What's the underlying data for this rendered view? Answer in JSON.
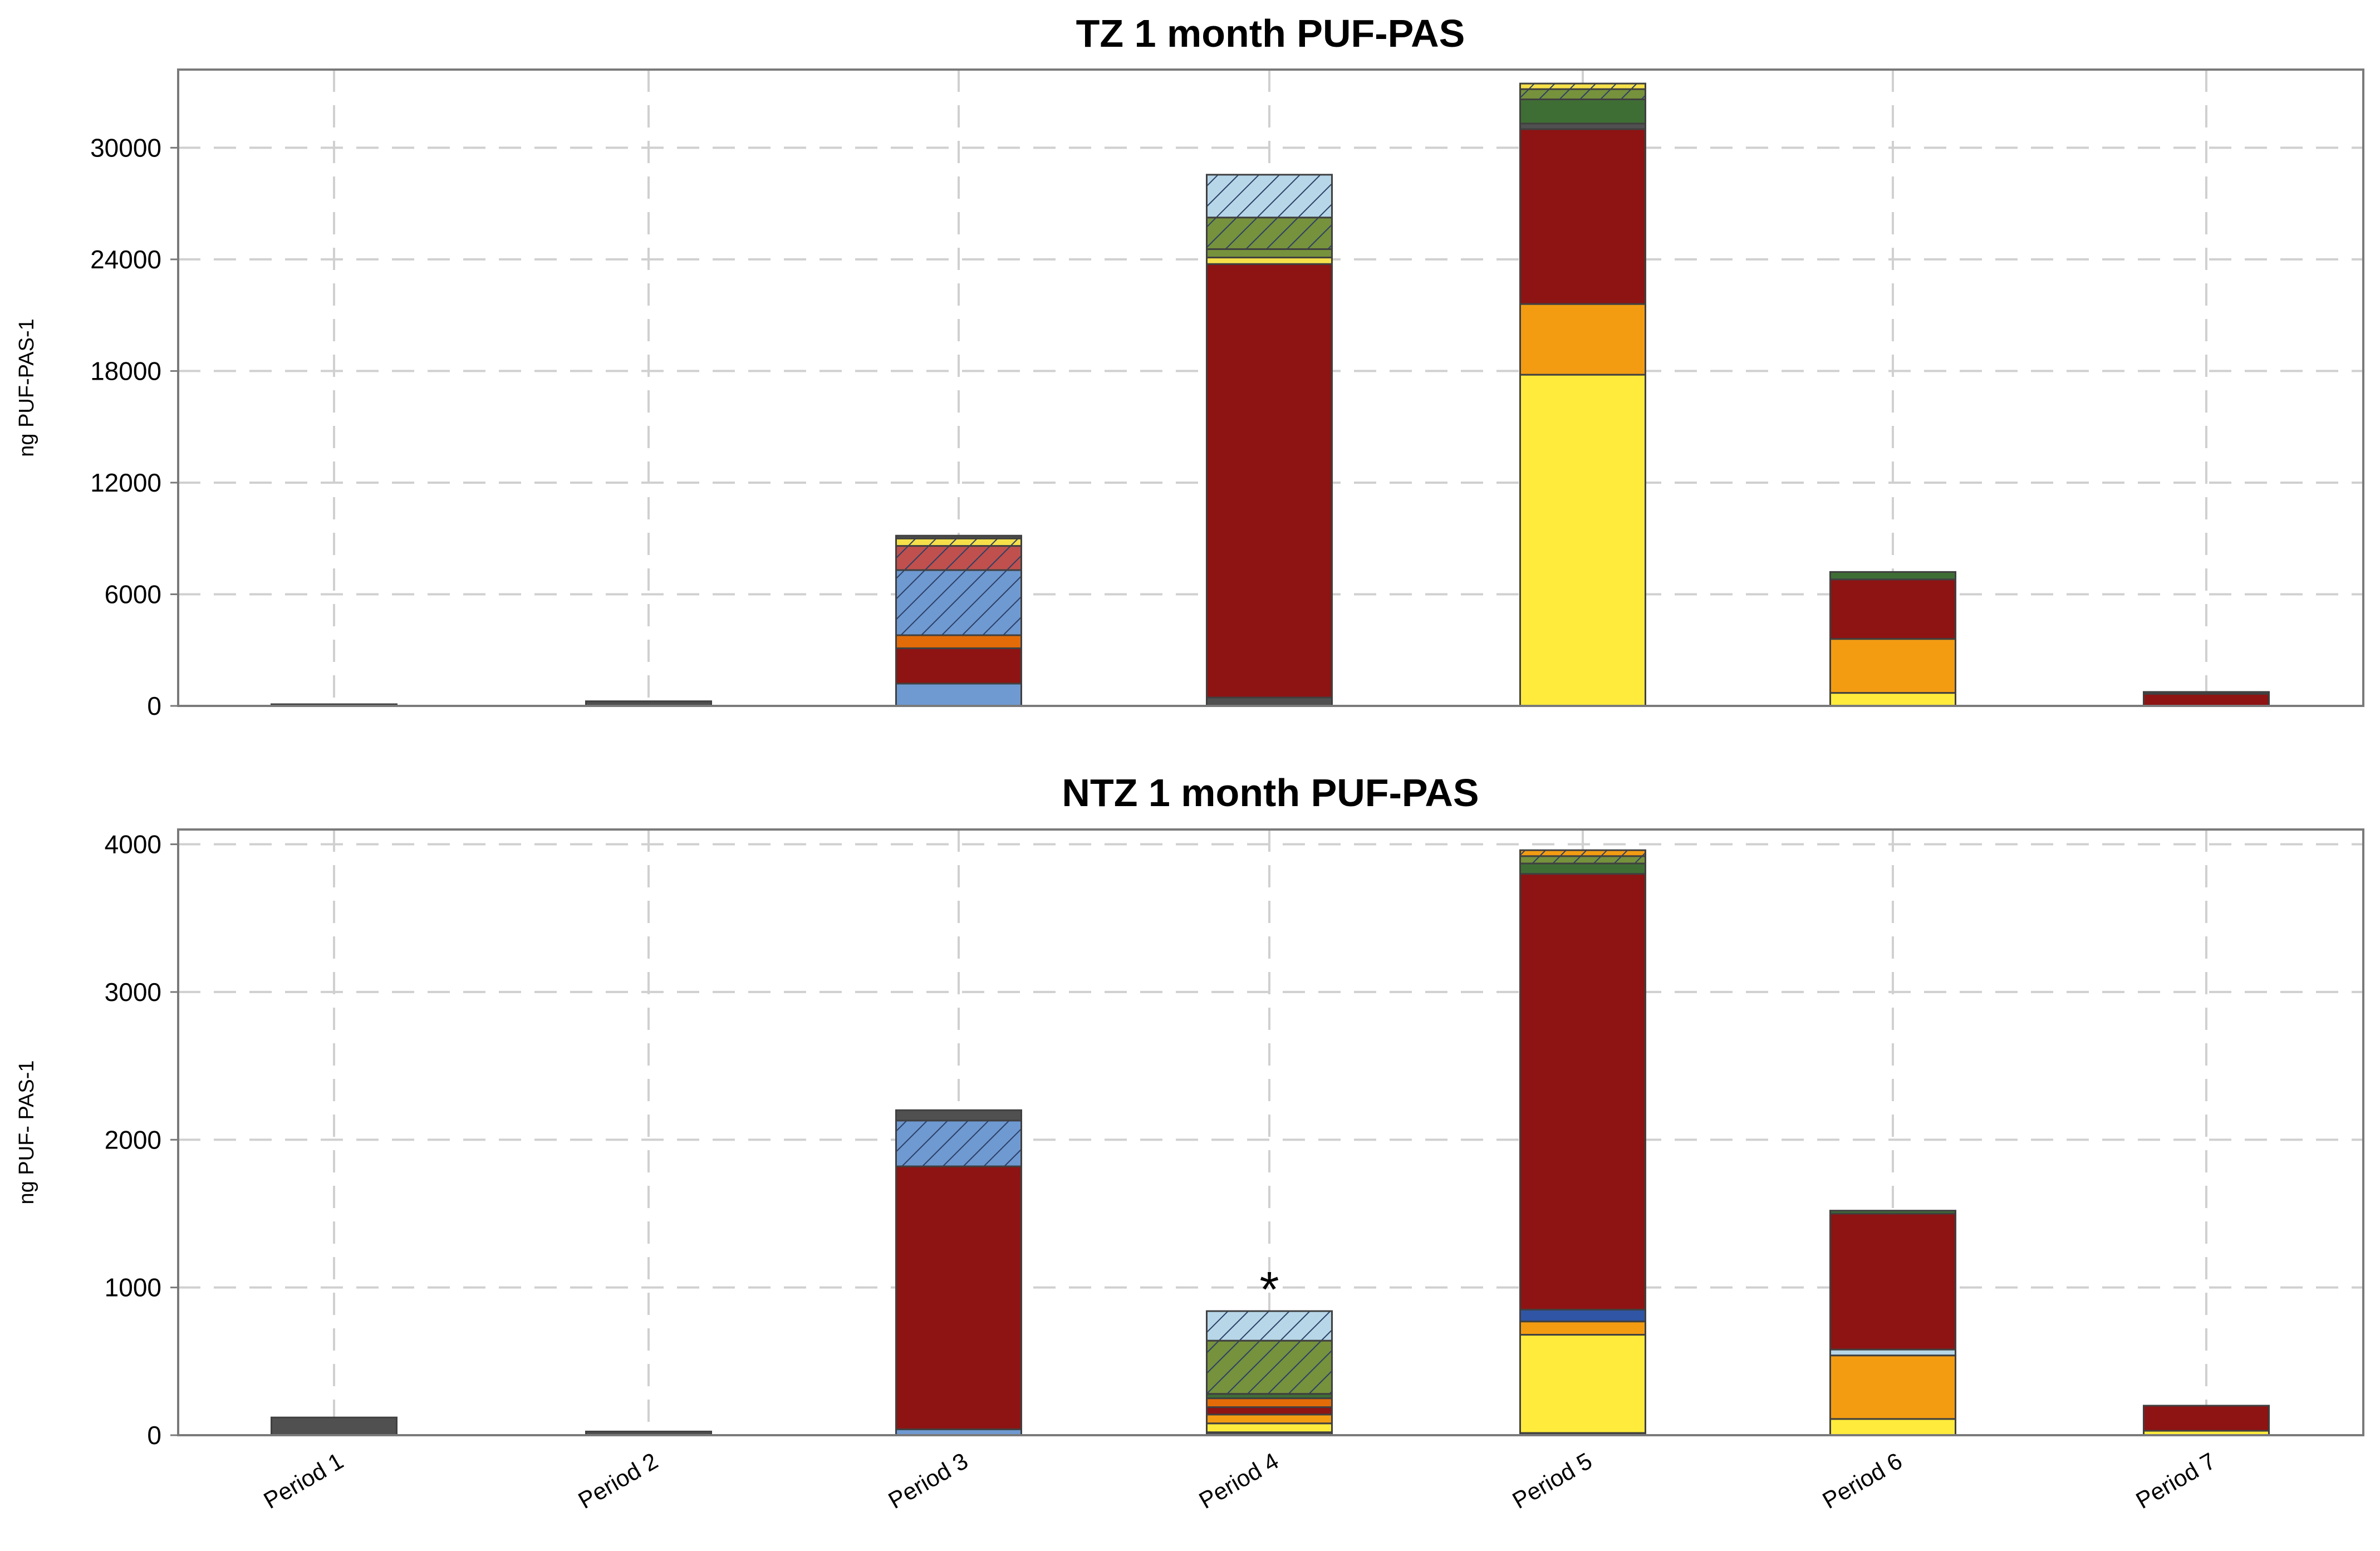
{
  "colors": {
    "frame": "#7a7a7a",
    "grid": "#d0d0d0",
    "baseline": "#909090",
    "bar_edge": "#404040",
    "background": "#ffffff"
  },
  "chart_data": [
    {
      "type": "bar",
      "stacked": true,
      "title": "TZ 1 month PUF-PAS",
      "xlabel": "",
      "ylabel": "ng PUF-PAS-1",
      "ylim": [
        0,
        34200
      ],
      "yticks": [
        0,
        6000,
        12000,
        18000,
        24000,
        30000
      ],
      "grid": true,
      "categories": [
        "Period 1",
        "Period 2",
        "Period 3",
        "Period 4",
        "Period 5",
        "Period 6",
        "Period 7"
      ],
      "show_category_labels": false,
      "stacks": [
        [
          {
            "value": 80,
            "color": "#505050"
          }
        ],
        [
          {
            "value": 250,
            "color": "#505050"
          }
        ],
        [
          {
            "value": 1200,
            "color": "#6f99d1"
          },
          {
            "value": 1900,
            "color": "#8e1313"
          },
          {
            "value": 700,
            "color": "#e36c09"
          },
          {
            "value": 3500,
            "color": "#6f99d1",
            "hatch": true
          },
          {
            "value": 1300,
            "color": "#c0504d",
            "hatch": true
          },
          {
            "value": 400,
            "color": "#f5e04a",
            "hatch": true
          },
          {
            "value": 150,
            "color": "#505050"
          }
        ],
        [
          {
            "value": 450,
            "color": "#505050"
          },
          {
            "value": 23300,
            "color": "#8e1313"
          },
          {
            "value": 350,
            "color": "#f5e04a"
          },
          {
            "value": 450,
            "color": "#76923c"
          },
          {
            "value": 1700,
            "color": "#76923c",
            "hatch": true
          },
          {
            "value": 2300,
            "color": "#b7d7e8",
            "hatch": true
          }
        ],
        [
          {
            "value": 17800,
            "color": "#ffeb3b"
          },
          {
            "value": 3800,
            "color": "#f39c12"
          },
          {
            "value": 9400,
            "color": "#8e1313"
          },
          {
            "value": 300,
            "color": "#505050"
          },
          {
            "value": 1300,
            "color": "#3f6e35"
          },
          {
            "value": 550,
            "color": "#76923c",
            "hatch": true
          },
          {
            "value": 300,
            "color": "#f5e04a",
            "hatch": true
          }
        ],
        [
          {
            "value": 700,
            "color": "#ffeb3b"
          },
          {
            "value": 2900,
            "color": "#f39c12"
          },
          {
            "value": 3200,
            "color": "#8e1313"
          },
          {
            "value": 400,
            "color": "#3f6e35"
          }
        ],
        [
          {
            "value": 650,
            "color": "#8e1313"
          },
          {
            "value": 100,
            "color": "#505050"
          }
        ]
      ],
      "annotations": []
    },
    {
      "type": "bar",
      "stacked": true,
      "title": "NTZ 1 month PUF-PAS",
      "xlabel": "",
      "ylabel": "ng PUF- PAS-1",
      "ylim": [
        0,
        4100
      ],
      "yticks": [
        0,
        1000,
        2000,
        3000,
        4000
      ],
      "grid": true,
      "categories": [
        "Period 1",
        "Period 2",
        "Period 3",
        "Period 4",
        "Period 5",
        "Period 6",
        "Period 7"
      ],
      "show_category_labels": true,
      "stacks": [
        [
          {
            "value": 120,
            "color": "#505050"
          }
        ],
        [
          {
            "value": 25,
            "color": "#505050"
          }
        ],
        [
          {
            "value": 40,
            "color": "#6f99d1"
          },
          {
            "value": 1780,
            "color": "#8e1313"
          },
          {
            "value": 310,
            "color": "#6f99d1",
            "hatch": true
          },
          {
            "value": 70,
            "color": "#505050"
          }
        ],
        [
          {
            "value": 20,
            "color": "#505050"
          },
          {
            "value": 60,
            "color": "#ffeb3b"
          },
          {
            "value": 60,
            "color": "#f39c12"
          },
          {
            "value": 50,
            "color": "#8e1313"
          },
          {
            "value": 60,
            "color": "#e36c09"
          },
          {
            "value": 30,
            "color": "#3f6e35"
          },
          {
            "value": 360,
            "color": "#76923c",
            "hatch": true
          },
          {
            "value": 200,
            "color": "#b7d7e8",
            "hatch": true
          }
        ],
        [
          {
            "value": 15,
            "color": "#505050"
          },
          {
            "value": 665,
            "color": "#ffeb3b"
          },
          {
            "value": 90,
            "color": "#f39c12"
          },
          {
            "value": 80,
            "color": "#2f55a4"
          },
          {
            "value": 2950,
            "color": "#8e1313"
          },
          {
            "value": 70,
            "color": "#3f6e35"
          },
          {
            "value": 50,
            "color": "#76923c",
            "hatch": true
          },
          {
            "value": 40,
            "color": "#f39c12",
            "hatch": true
          }
        ],
        [
          {
            "value": 110,
            "color": "#ffeb3b"
          },
          {
            "value": 430,
            "color": "#f39c12"
          },
          {
            "value": 40,
            "color": "#b7d7e8"
          },
          {
            "value": 920,
            "color": "#8e1313"
          },
          {
            "value": 20,
            "color": "#3f6e35"
          }
        ],
        [
          {
            "value": 30,
            "color": "#ffeb3b"
          },
          {
            "value": 170,
            "color": "#8e1313"
          }
        ]
      ],
      "annotations": [
        {
          "category": "Period 4",
          "text": "*"
        }
      ]
    }
  ]
}
